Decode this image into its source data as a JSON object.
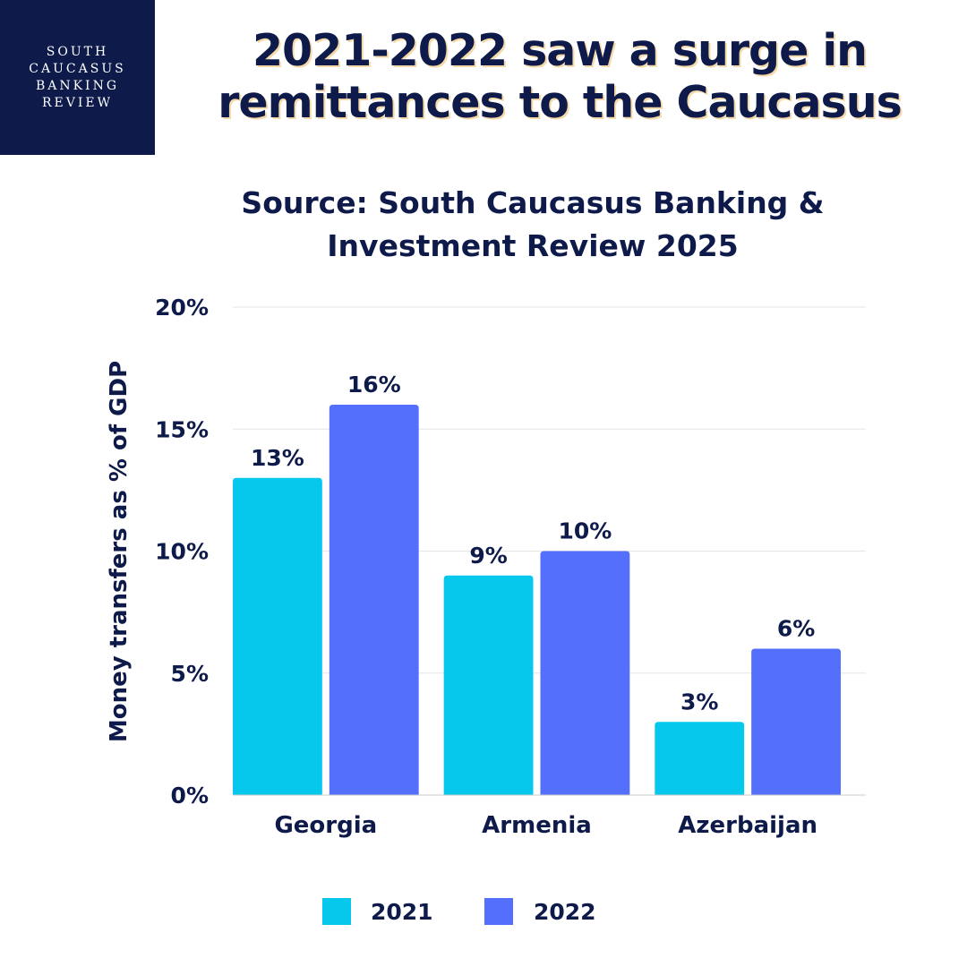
{
  "logo": {
    "lines": [
      "SOUTH",
      "CAUCASUS",
      "BANKING",
      "REVIEW"
    ]
  },
  "header": {
    "title": "2021-2022 saw a surge in remittances to the Caucasus",
    "subtitle": "Source: South Caucasus Banking & Investment Review 2025"
  },
  "colors": {
    "navy": "#0d1a4a",
    "series_2021": "#06c8ec",
    "series_2022": "#536ffc",
    "title_shadow": "#f6d9a8",
    "grid": "#e6e6e6"
  },
  "chart_data": {
    "type": "bar",
    "categories": [
      "Georgia",
      "Armenia",
      "Azerbaijan"
    ],
    "series": [
      {
        "name": "2021",
        "values": [
          13,
          9,
          3
        ],
        "labels": [
          "13%",
          "9%",
          "3%"
        ],
        "color": "#06c8ec"
      },
      {
        "name": "2022",
        "values": [
          16,
          10,
          6
        ],
        "labels": [
          "16%",
          "10%",
          "6%"
        ],
        "color": "#536ffc"
      }
    ],
    "ylabel": "Money transfers as % of GDP",
    "ylim": [
      0,
      20
    ],
    "yticks": [
      0,
      5,
      10,
      15,
      20
    ],
    "ytick_labels": [
      "0%",
      "5%",
      "10%",
      "15%",
      "20%"
    ],
    "grid": true,
    "legend": "bottom"
  }
}
